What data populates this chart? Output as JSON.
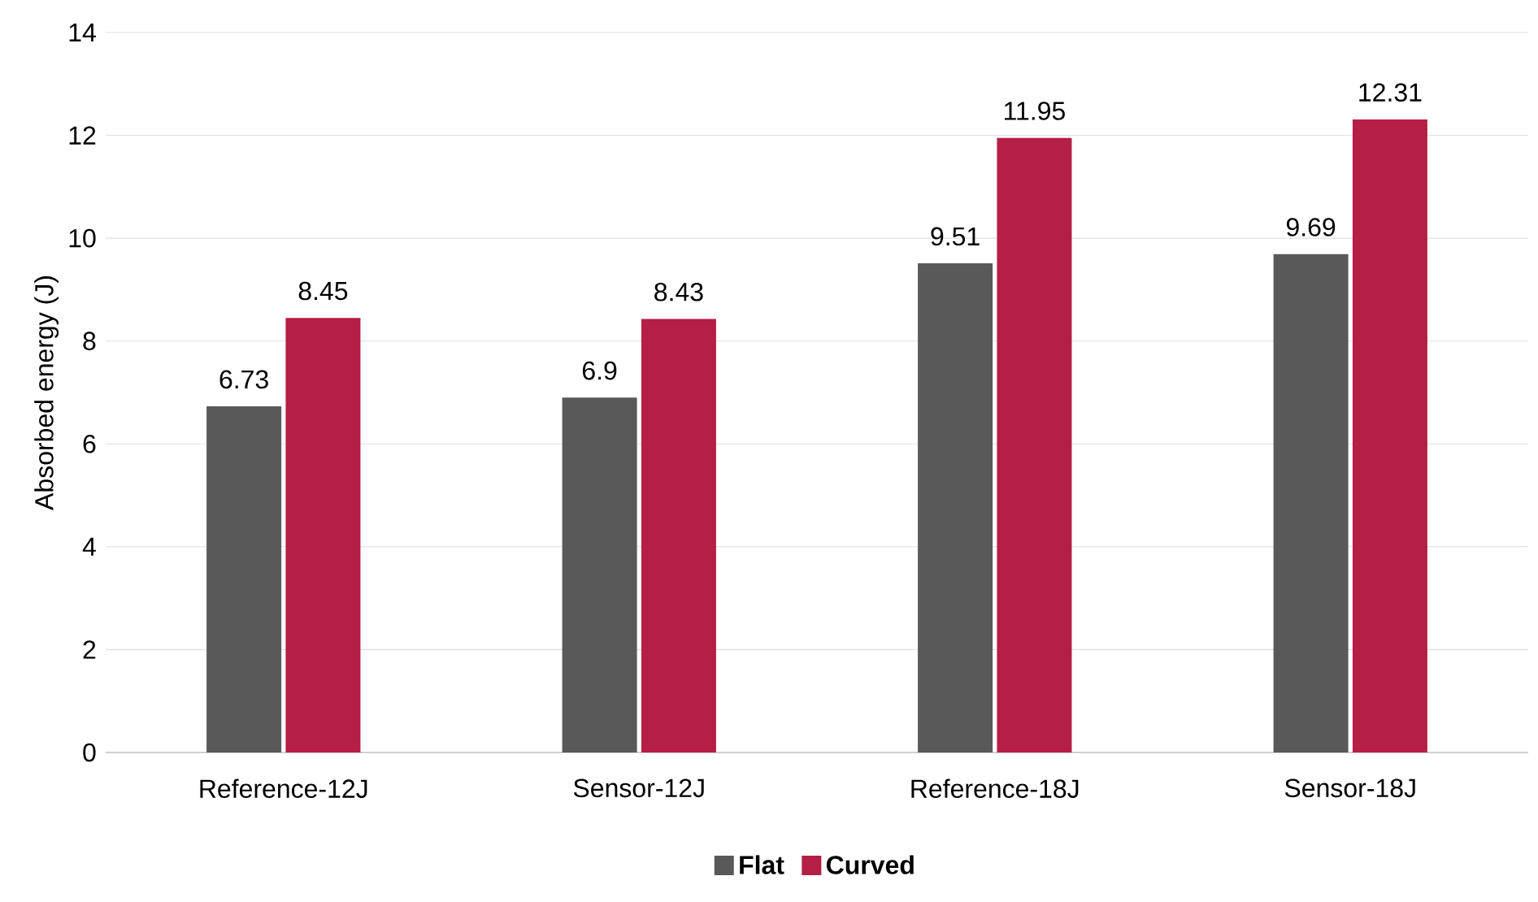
{
  "chart_data": {
    "type": "bar",
    "ylabel": "Absorbed energy (J)",
    "categories": [
      "Reference-12J",
      "Sensor-12J",
      "Reference-18J",
      "Sensor-18J"
    ],
    "series": [
      {
        "name": "Flat",
        "color": "#595959",
        "values": [
          6.73,
          6.9,
          9.51,
          9.69
        ]
      },
      {
        "name": "Curved",
        "color": "#b51e45",
        "values": [
          8.45,
          8.43,
          11.95,
          12.31
        ]
      }
    ],
    "ylim": [
      0,
      14
    ],
    "yticks": [
      0,
      2,
      4,
      6,
      8,
      10,
      12,
      14
    ],
    "grid": "y",
    "legend": "bottom",
    "data_labels": true
  }
}
